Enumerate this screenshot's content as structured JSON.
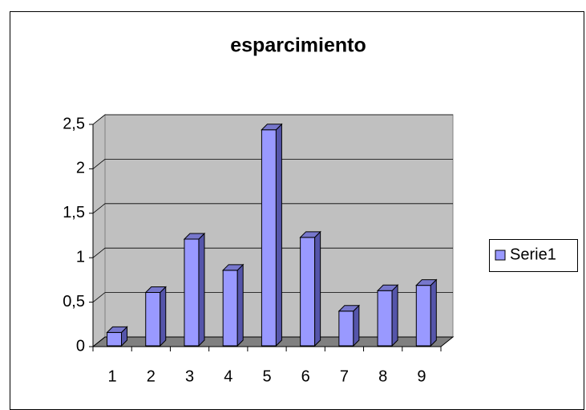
{
  "chart_data": {
    "type": "bar",
    "title": "esparcimiento",
    "categories": [
      "1",
      "2",
      "3",
      "4",
      "5",
      "6",
      "7",
      "8",
      "9"
    ],
    "series": [
      {
        "name": "Serie1",
        "color": "#9999ff",
        "values": [
          0.15,
          0.6,
          1.2,
          0.85,
          2.43,
          1.22,
          0.39,
          0.62,
          0.68
        ]
      }
    ],
    "ylim": [
      0,
      2.5
    ],
    "yticks": [
      0,
      {
        "value": 0.5,
        "label": "0,5"
      },
      1,
      {
        "value": 1.5,
        "label": "1,5"
      },
      2,
      {
        "value": 2.5,
        "label": "2,5"
      }
    ],
    "grid": true,
    "legend": "right"
  }
}
